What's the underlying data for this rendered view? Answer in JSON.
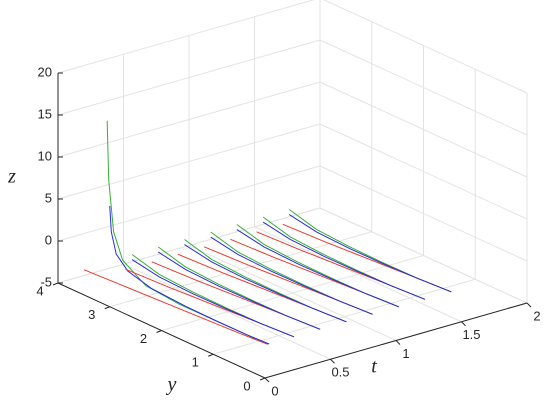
{
  "chart_data": {
    "type": "line3d",
    "xlabel": "t",
    "ylabel": "y",
    "zlabel": "z",
    "xlim": [
      0,
      2
    ],
    "ylim": [
      0,
      4
    ],
    "zlim": [
      -5,
      20
    ],
    "xticks": [
      0,
      0.5,
      1,
      1.5,
      2
    ],
    "yticks": [
      0,
      1,
      2,
      3,
      4
    ],
    "zticks": [
      -5,
      0,
      5,
      10,
      15,
      20
    ],
    "grid": true,
    "series": [
      {
        "color": "#e8382b",
        "t": [
          0,
          0.02,
          0.04,
          0.06,
          0.08,
          0.1
        ],
        "y": [
          3.5,
          2.8,
          2.1,
          1.4,
          0.7,
          0.2
        ],
        "z": [
          -2,
          -2,
          -2,
          -2,
          -2,
          -2
        ]
      },
      {
        "color": "#35b035",
        "t": [
          0,
          0,
          0.01,
          0.02,
          0.04,
          0.06,
          0.08,
          0.1,
          0.11
        ],
        "y": [
          3.05,
          3.02,
          2.95,
          2.8,
          2.4,
          1.8,
          1.2,
          0.6,
          0.2
        ],
        "z": [
          17,
          10,
          4,
          1,
          -1,
          -1.6,
          -1.8,
          -2,
          -2
        ]
      },
      {
        "color": "#2a2ae0",
        "t": [
          0,
          0,
          0.01,
          0.02,
          0.04,
          0.06,
          0.08,
          0.1,
          0.11
        ],
        "y": [
          3.0,
          2.97,
          2.9,
          2.7,
          2.3,
          1.7,
          1.1,
          0.5,
          0.2
        ],
        "z": [
          7,
          4,
          1.5,
          0,
          -1,
          -1.5,
          -1.8,
          -2,
          -2
        ]
      },
      {
        "color": "#e8382b",
        "t": [
          0.2,
          0.22,
          0.25,
          0.28,
          0.3
        ],
        "y": [
          3.2,
          2.4,
          1.6,
          0.8,
          0.2
        ],
        "z": [
          -2,
          -2,
          -2,
          -2,
          -2
        ]
      },
      {
        "color": "#35b035",
        "t": [
          0.21,
          0.22,
          0.24,
          0.26,
          0.28,
          0.3
        ],
        "y": [
          3.1,
          2.6,
          2.0,
          1.4,
          0.8,
          0.2
        ],
        "z": [
          0,
          -1,
          -1.5,
          -1.8,
          -2,
          -2
        ]
      },
      {
        "color": "#2a2ae0",
        "t": [
          0.21,
          0.22,
          0.24,
          0.26,
          0.28,
          0.3
        ],
        "y": [
          3.1,
          2.6,
          2.0,
          1.4,
          0.8,
          0.2
        ],
        "z": [
          -0.6,
          -1.3,
          -1.7,
          -1.9,
          -2,
          -2
        ]
      },
      {
        "color": "#e8382b",
        "t": [
          0.4,
          0.42,
          0.45,
          0.48,
          0.5
        ],
        "y": [
          3.2,
          2.4,
          1.6,
          0.8,
          0.2
        ],
        "z": [
          -2,
          -2,
          -2,
          -2,
          -2
        ]
      },
      {
        "color": "#35b035",
        "t": [
          0.41,
          0.42,
          0.44,
          0.46,
          0.48,
          0.5
        ],
        "y": [
          3.1,
          2.6,
          2.0,
          1.4,
          0.8,
          0.2
        ],
        "z": [
          0,
          -1,
          -1.5,
          -1.8,
          -2,
          -2
        ]
      },
      {
        "color": "#2a2ae0",
        "t": [
          0.41,
          0.42,
          0.44,
          0.46,
          0.48,
          0.5
        ],
        "y": [
          3.1,
          2.6,
          2.0,
          1.4,
          0.8,
          0.2
        ],
        "z": [
          -0.6,
          -1.3,
          -1.7,
          -1.9,
          -2,
          -2
        ]
      },
      {
        "color": "#e8382b",
        "t": [
          0.6,
          0.62,
          0.65,
          0.68,
          0.7
        ],
        "y": [
          3.2,
          2.4,
          1.6,
          0.8,
          0.2
        ],
        "z": [
          -2,
          -2,
          -2,
          -2,
          -2
        ]
      },
      {
        "color": "#35b035",
        "t": [
          0.61,
          0.62,
          0.64,
          0.66,
          0.68,
          0.7
        ],
        "y": [
          3.1,
          2.6,
          2.0,
          1.4,
          0.8,
          0.2
        ],
        "z": [
          0,
          -1,
          -1.5,
          -1.8,
          -2,
          -2
        ]
      },
      {
        "color": "#2a2ae0",
        "t": [
          0.61,
          0.62,
          0.64,
          0.66,
          0.68,
          0.7
        ],
        "y": [
          3.1,
          2.6,
          2.0,
          1.4,
          0.8,
          0.2
        ],
        "z": [
          -0.6,
          -1.3,
          -1.7,
          -1.9,
          -2,
          -2
        ]
      },
      {
        "color": "#e8382b",
        "t": [
          0.8,
          0.82,
          0.85,
          0.88,
          0.9
        ],
        "y": [
          3.2,
          2.4,
          1.6,
          0.8,
          0.2
        ],
        "z": [
          -2,
          -2,
          -2,
          -2,
          -2
        ]
      },
      {
        "color": "#35b035",
        "t": [
          0.81,
          0.82,
          0.84,
          0.86,
          0.88,
          0.9
        ],
        "y": [
          3.1,
          2.6,
          2.0,
          1.4,
          0.8,
          0.2
        ],
        "z": [
          0,
          -1,
          -1.5,
          -1.8,
          -2,
          -2
        ]
      },
      {
        "color": "#2a2ae0",
        "t": [
          0.81,
          0.82,
          0.84,
          0.86,
          0.88,
          0.9
        ],
        "y": [
          3.1,
          2.6,
          2.0,
          1.4,
          0.8,
          0.2
        ],
        "z": [
          -0.6,
          -1.3,
          -1.7,
          -1.9,
          -2,
          -2
        ]
      },
      {
        "color": "#e8382b",
        "t": [
          1,
          1.02,
          1.05,
          1.08,
          1.1
        ],
        "y": [
          3.2,
          2.4,
          1.6,
          0.8,
          0.2
        ],
        "z": [
          -2,
          -2,
          -2,
          -2,
          -2
        ]
      },
      {
        "color": "#35b035",
        "t": [
          1.01,
          1.02,
          1.04,
          1.06,
          1.08,
          1.1
        ],
        "y": [
          3.1,
          2.6,
          2.0,
          1.4,
          0.8,
          0.2
        ],
        "z": [
          0,
          -1,
          -1.5,
          -1.8,
          -2,
          -2
        ]
      },
      {
        "color": "#2a2ae0",
        "t": [
          1.01,
          1.02,
          1.04,
          1.06,
          1.08,
          1.1
        ],
        "y": [
          3.1,
          2.6,
          2.0,
          1.4,
          0.8,
          0.2
        ],
        "z": [
          -0.6,
          -1.3,
          -1.7,
          -1.9,
          -2,
          -2
        ]
      },
      {
        "color": "#e8382b",
        "t": [
          1.2,
          1.22,
          1.25,
          1.28,
          1.3
        ],
        "y": [
          3.2,
          2.4,
          1.6,
          0.8,
          0.2
        ],
        "z": [
          -2,
          -2,
          -2,
          -2,
          -2
        ]
      },
      {
        "color": "#35b035",
        "t": [
          1.21,
          1.22,
          1.24,
          1.26,
          1.28,
          1.3
        ],
        "y": [
          3.1,
          2.6,
          2.0,
          1.4,
          0.8,
          0.2
        ],
        "z": [
          0,
          -1,
          -1.5,
          -1.8,
          -2,
          -2
        ]
      },
      {
        "color": "#2a2ae0",
        "t": [
          1.21,
          1.22,
          1.24,
          1.26,
          1.28,
          1.3
        ],
        "y": [
          3.1,
          2.6,
          2.0,
          1.4,
          0.8,
          0.2
        ],
        "z": [
          -0.6,
          -1.3,
          -1.7,
          -1.9,
          -2,
          -2
        ]
      },
      {
        "color": "#e8382b",
        "t": [
          1.4,
          1.42,
          1.45,
          1.48,
          1.5
        ],
        "y": [
          3.2,
          2.4,
          1.6,
          0.8,
          0.2
        ],
        "z": [
          -2,
          -2,
          -2,
          -2,
          -2
        ]
      },
      {
        "color": "#35b035",
        "t": [
          1.41,
          1.42,
          1.44,
          1.46,
          1.48,
          1.5
        ],
        "y": [
          3.1,
          2.6,
          2.0,
          1.4,
          0.8,
          0.2
        ],
        "z": [
          0,
          -1,
          -1.5,
          -1.8,
          -2,
          -2
        ]
      },
      {
        "color": "#2a2ae0",
        "t": [
          1.41,
          1.42,
          1.44,
          1.46,
          1.48,
          1.5
        ],
        "y": [
          3.1,
          2.6,
          2.0,
          1.4,
          0.8,
          0.2
        ],
        "z": [
          -0.6,
          -1.3,
          -1.7,
          -1.9,
          -2,
          -2
        ]
      }
    ]
  }
}
